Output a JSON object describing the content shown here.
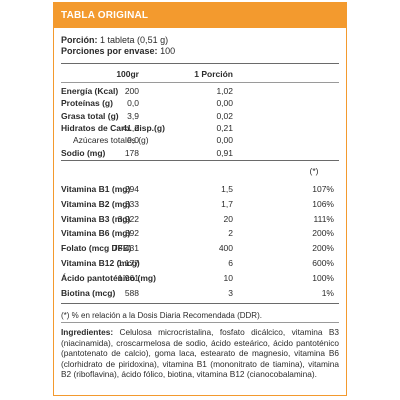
{
  "header": {
    "title": "TABLA ORIGINAL"
  },
  "portion": {
    "label": "Porción:",
    "value": "1 tableta (0,51 g)",
    "servings_label": "Porciones por envase:",
    "servings_value": "100"
  },
  "columns": {
    "per100": "100gr",
    "per_portion": "1 Porción",
    "pct_marker": "(*)"
  },
  "nutrients": [
    {
      "name": "Energía (Kcal)",
      "per100": "200",
      "portion": "1,02",
      "bold": true
    },
    {
      "name": "Proteínas (g)",
      "per100": "0,0",
      "portion": "0,00",
      "bold": true
    },
    {
      "name": "Grasa total (g)",
      "per100": "3,9",
      "portion": "0,02",
      "bold": true
    },
    {
      "name": "Hidratos de Carb. disp.(g)",
      "per100": "41,2",
      "portion": "0,21",
      "bold": true
    },
    {
      "name": "Azúcares totales (g)",
      "per100": "0,0",
      "portion": "0,00",
      "bold": false
    },
    {
      "name": "Sodio (mg)",
      "per100": "178",
      "portion": "0,91",
      "bold": true
    }
  ],
  "vitamins": [
    {
      "name": "Vitamina B1 (mg)",
      "per100": "294",
      "portion": "1,5",
      "pct": "107%"
    },
    {
      "name": "Vitamina B2 (mg)",
      "per100": "333",
      "portion": "1,7",
      "pct": "106%"
    },
    {
      "name": "Vitamina B3 (mg)",
      "per100": "3.922",
      "portion": "20",
      "pct": "111%"
    },
    {
      "name": "Vitamina B6 (mg)",
      "per100": "392",
      "portion": "2",
      "pct": "200%"
    },
    {
      "name": "Folato (mcg DFE)",
      "per100": "78.431",
      "portion": "400",
      "pct": "200%"
    },
    {
      "name": "Vitamina B12 (mcg)",
      "per100": "1.177",
      "portion": "6",
      "pct": "600%"
    },
    {
      "name": "Ácido pantoténico (mg)",
      "per100": "1.961",
      "portion": "10",
      "pct": "100%"
    },
    {
      "name": "Biotina (mcg)",
      "per100": "588",
      "portion": "3",
      "pct": "1%"
    }
  ],
  "footnote": "(*) % en relación a la Dosis Diaria Recomendada (DDR).",
  "ingredients": {
    "label": "Ingredientes:",
    "text": "Celulosa microcristalina, fosfato dicálcico, vitamina B3 (niacinamida), croscarmelosa de sodio, ácido esteárico, ácido pantoténico (pantotenato de calcio), goma laca, estearato de magnesio, vitamina B6 (clorhidrato de piridoxina), vitamina B1 (mononitrato de tiamina), vitamina B2 (riboflavina), ácido fólico, biotina, vitamina B12 (cianocobalamina)."
  },
  "colors": {
    "accent": "#f39a2e",
    "text": "#2b2b2b"
  }
}
